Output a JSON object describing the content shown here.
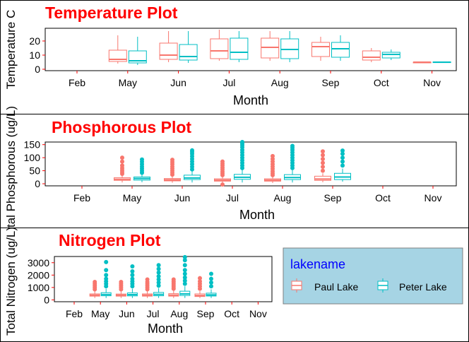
{
  "colors": {
    "paul": "#f8766d",
    "peter": "#00bfc4",
    "title": "#ff0000",
    "legend_bg": "#a6d4e4",
    "legend_border": "#7f7f7f",
    "legend_title": "#0000ff",
    "tick": "#ff0000"
  },
  "legend": {
    "title": "lakename",
    "items": [
      "Paul Lake",
      "Peter Lake"
    ]
  },
  "chart_data": [
    {
      "type": "boxplot",
      "title": "Temperature Plot",
      "xlabel": "Month",
      "ylabel": "Temperature C",
      "ylim": [
        -1,
        29
      ],
      "yticks": [
        0,
        10,
        20
      ],
      "categories": [
        "Feb",
        "May",
        "Jun",
        "Jul",
        "Aug",
        "Sep",
        "Oct",
        "Nov"
      ],
      "series": [
        {
          "name": "Paul Lake",
          "boxes": [
            null,
            {
              "low": 4,
              "q1": 5.5,
              "median": 7,
              "q3": 13.5,
              "high": 24,
              "outliers": []
            },
            {
              "low": 5,
              "q1": 7,
              "median": 10,
              "q3": 18.5,
              "high": 27,
              "outliers": []
            },
            {
              "low": 6,
              "q1": 7.5,
              "median": 13,
              "q3": 21.5,
              "high": 28,
              "outliers": []
            },
            {
              "low": 6,
              "q1": 8,
              "median": 15.5,
              "q3": 22,
              "high": 27,
              "outliers": []
            },
            {
              "low": 6,
              "q1": 9,
              "median": 16,
              "q3": 19,
              "high": 23,
              "outliers": []
            },
            {
              "low": 5,
              "q1": 6.5,
              "median": 8.5,
              "q3": 13,
              "high": 15,
              "outliers": []
            },
            {
              "low": 4.5,
              "q1": 4.5,
              "median": 5,
              "q3": 5,
              "high": 5,
              "outliers": []
            }
          ]
        },
        {
          "name": "Peter Lake",
          "boxes": [
            null,
            {
              "low": 3,
              "q1": 4.5,
              "median": 6,
              "q3": 13,
              "high": 23,
              "outliers": []
            },
            {
              "low": 4.5,
              "q1": 6.5,
              "median": 9,
              "q3": 17.5,
              "high": 27,
              "outliers": []
            },
            {
              "low": 5,
              "q1": 7,
              "median": 12,
              "q3": 22,
              "high": 27,
              "outliers": []
            },
            {
              "low": 5,
              "q1": 7.5,
              "median": 14,
              "q3": 21.5,
              "high": 27,
              "outliers": []
            },
            {
              "low": 6,
              "q1": 8.5,
              "median": 14.5,
              "q3": 19,
              "high": 24,
              "outliers": []
            },
            {
              "low": 6.5,
              "q1": 8,
              "median": 10.5,
              "q3": 12,
              "high": 14,
              "outliers": []
            },
            {
              "low": 4.5,
              "q1": 4.7,
              "median": 5,
              "q3": 5.2,
              "high": 5.5,
              "outliers": []
            }
          ]
        }
      ]
    },
    {
      "type": "boxplot",
      "title": "Phosphorous Plot",
      "xlabel": "Month",
      "ylabel": "Total Phosphorous (ug/L)",
      "ylim": [
        -8,
        160
      ],
      "yticks": [
        0,
        50,
        100,
        150
      ],
      "categories": [
        "Feb",
        "May",
        "Jun",
        "Jul",
        "Aug",
        "Sep",
        "Oct",
        "Nov"
      ],
      "series": [
        {
          "name": "Paul Lake",
          "boxes": [
            null,
            {
              "low": 5,
              "q1": 13,
              "median": 17,
              "q3": 23,
              "high": 33,
              "outliers": [
                38,
                45,
                52,
                60,
                70,
                85,
                100
              ]
            },
            {
              "low": 4,
              "q1": 11,
              "median": 15,
              "q3": 20,
              "high": 30,
              "outliers": [
                35,
                42,
                50,
                58,
                66,
                75,
                83,
                92
              ]
            },
            {
              "low": 3,
              "q1": 10,
              "median": 14,
              "q3": 19,
              "high": 28,
              "outliers": [
                33,
                40,
                47,
                55,
                62,
                70,
                77,
                85,
                -3
              ]
            },
            {
              "low": 3,
              "q1": 10,
              "median": 14,
              "q3": 19,
              "high": 28,
              "outliers": [
                33,
                40,
                48,
                57,
                66,
                75,
                85,
                95,
                106
              ]
            },
            {
              "low": 6,
              "q1": 13,
              "median": 18,
              "q3": 29,
              "high": 40,
              "outliers": [
                50,
                65,
                80,
                95,
                110,
                124
              ]
            },
            null,
            null
          ]
        },
        {
          "name": "Peter Lake",
          "boxes": [
            null,
            {
              "low": 6,
              "q1": 14,
              "median": 20,
              "q3": 26,
              "high": 36,
              "outliers": [
                42,
                50,
                58,
                66,
                75,
                84,
                93
              ]
            },
            {
              "low": 5,
              "q1": 16,
              "median": 22,
              "q3": 33,
              "high": 48,
              "outliers": [
                55,
                65,
                75,
                85,
                95,
                105,
                115,
                122,
                128
              ]
            },
            {
              "low": 5,
              "q1": 17,
              "median": 25,
              "q3": 36,
              "high": 54,
              "outliers": [
                60,
                70,
                80,
                90,
                100,
                110,
                120,
                130,
                140,
                148,
                155,
                160
              ]
            },
            {
              "low": 5,
              "q1": 16,
              "median": 24,
              "q3": 35,
              "high": 52,
              "outliers": [
                60,
                70,
                80,
                90,
                100,
                110,
                120,
                130,
                138,
                145
              ]
            },
            {
              "low": 8,
              "q1": 16,
              "median": 26,
              "q3": 40,
              "high": 58,
              "outliers": [
                70,
                85,
                100,
                115,
                127
              ]
            },
            null,
            null
          ]
        }
      ]
    },
    {
      "type": "boxplot",
      "title": "Nitrogen Plot",
      "xlabel": "Month",
      "ylabel": "Total Nitrogen (ug/L)",
      "ylim": [
        -150,
        3500
      ],
      "yticks": [
        0,
        1000,
        2000,
        3000
      ],
      "categories": [
        "Feb",
        "May",
        "Jun",
        "Jul",
        "Aug",
        "Sep",
        "Oct",
        "Nov"
      ],
      "series": [
        {
          "name": "Paul Lake",
          "boxes": [
            null,
            {
              "low": 150,
              "q1": 300,
              "median": 380,
              "q3": 480,
              "high": 700,
              "outliers": [
                850,
                1000,
                1150,
                1300,
                1450
              ]
            },
            {
              "low": 150,
              "q1": 300,
              "median": 380,
              "q3": 470,
              "high": 700,
              "outliers": [
                850,
                1000,
                1150,
                1300,
                1450
              ]
            },
            {
              "low": 150,
              "q1": 300,
              "median": 380,
              "q3": 480,
              "high": 700,
              "outliers": [
                850,
                1000,
                1150,
                1300,
                1450,
                1650
              ]
            },
            {
              "low": 150,
              "q1": 300,
              "median": 380,
              "q3": 500,
              "high": 750,
              "outliers": [
                900,
                1050,
                1200,
                1350,
                1500,
                1650
              ]
            },
            {
              "low": 150,
              "q1": 270,
              "median": 350,
              "q3": 480,
              "high": 700,
              "outliers": [
                900,
                1100,
                1300,
                1500,
                1750
              ]
            },
            null,
            null
          ]
        },
        {
          "name": "Peter Lake",
          "boxes": [
            null,
            {
              "low": 150,
              "q1": 330,
              "median": 430,
              "q3": 580,
              "high": 900,
              "outliers": [
                1100,
                1300,
                1500,
                1700,
                2000,
                2400,
                3050
              ]
            },
            {
              "low": 150,
              "q1": 320,
              "median": 420,
              "q3": 560,
              "high": 900,
              "outliers": [
                1100,
                1300,
                1500,
                1700,
                2000,
                2300,
                2700
              ]
            },
            {
              "low": 150,
              "q1": 330,
              "median": 440,
              "q3": 600,
              "high": 950,
              "outliers": [
                1150,
                1400,
                1650,
                1900,
                2200,
                2500,
                2800
              ]
            },
            {
              "low": 150,
              "q1": 350,
              "median": 480,
              "q3": 700,
              "high": 1100,
              "outliers": [
                1300,
                1550,
                1800,
                2100,
                2400,
                2800,
                3200,
                3450
              ]
            },
            {
              "low": 150,
              "q1": 310,
              "median": 400,
              "q3": 540,
              "high": 850,
              "outliers": [
                1100,
                1400,
                1700,
                2100
              ]
            },
            null,
            null
          ]
        }
      ]
    }
  ]
}
